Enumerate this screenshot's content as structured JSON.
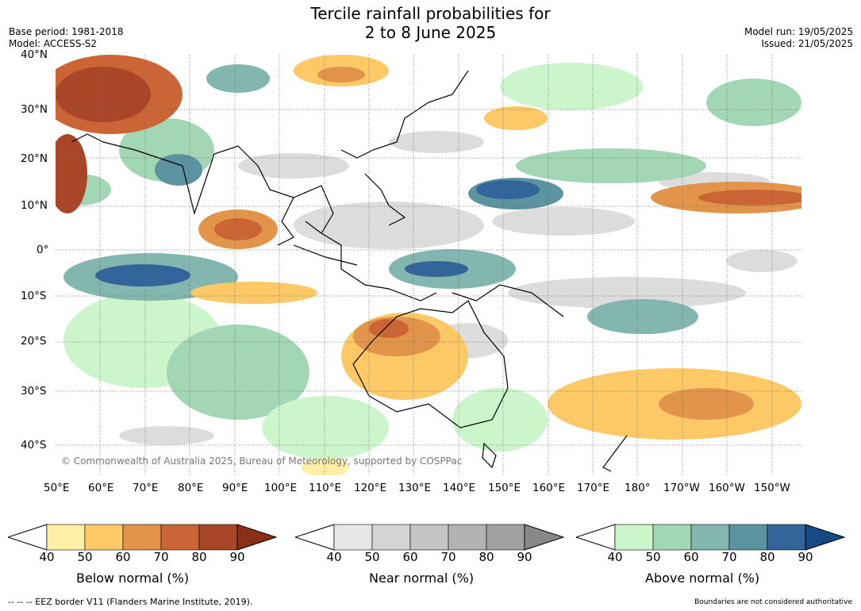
{
  "title": {
    "line1": "Tercile rainfall probabilities for",
    "line2": "2 to 8 June 2025"
  },
  "header_left": {
    "base_period": "Base period: 1981-2018",
    "model": "Model: ACCESS-S2"
  },
  "header_right": {
    "model_run": "Model run: 19/05/2025",
    "issued": "Issued: 21/05/2025"
  },
  "map": {
    "lat_labels": [
      "40°N",
      "30°N",
      "20°N",
      "10°N",
      "0°",
      "10°S",
      "20°S",
      "30°S",
      "40°S"
    ],
    "lon_labels": [
      "50°E",
      "60°E",
      "70°E",
      "80°E",
      "90°E",
      "100°E",
      "110°E",
      "120°E",
      "130°E",
      "140°E",
      "150°E",
      "160°E",
      "170°E",
      "180°",
      "170°W",
      "160°W",
      "150°W"
    ],
    "copyright": "© Commonwealth of Australia 2025, Bureau of Meteorology, supported by COSPPac"
  },
  "colorbars": [
    {
      "label": "Below normal (%)",
      "ticks": [
        "40",
        "50",
        "60",
        "70",
        "80",
        "90"
      ],
      "colors": [
        "#ffeea6",
        "#fdc966",
        "#e2954a",
        "#cb6536",
        "#a94627",
        "#8b2e1a"
      ]
    },
    {
      "label": "Near normal (%)",
      "ticks": [
        "40",
        "50",
        "60",
        "70",
        "80",
        "90"
      ],
      "colors": [
        "#e6e6e6",
        "#d4d4d4",
        "#c4c4c4",
        "#b2b2b2",
        "#a0a0a0",
        "#888888"
      ]
    },
    {
      "label": "Above normal (%)",
      "ticks": [
        "40",
        "50",
        "60",
        "70",
        "80",
        "90"
      ],
      "colors": [
        "#ccf5cc",
        "#a2d6b4",
        "#82b6ae",
        "#5b93a0",
        "#33649a",
        "#154a82"
      ]
    }
  ],
  "footer": {
    "eez": "--  --  -- EEZ border V11 (Flanders Marine Institute, 2019).",
    "disclaimer": "Boundaries are not considered authoritative"
  }
}
